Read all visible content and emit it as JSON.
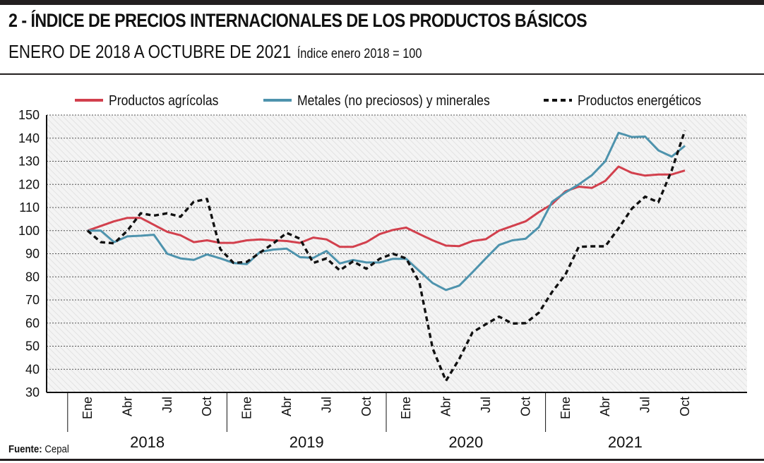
{
  "header": {
    "title": "2 - ÍNDICE DE PRECIOS INTERNACIONALES DE LOS PRODUCTOS BÁSICOS",
    "subtitle": "ENERO DE 2018 A OCTUBRE DE 2021",
    "note": "Índice enero 2018 = 100"
  },
  "footer": {
    "source_label": "Fuente:",
    "source_value": "Cepal"
  },
  "chart_data": {
    "type": "line",
    "x_labels": [
      "Ene",
      "Abr",
      "Jul",
      "Oct",
      "Ene",
      "Abr",
      "Jul",
      "Oct",
      "Ene",
      "Abr",
      "Jul",
      "Oct",
      "Ene",
      "Abr",
      "Jul",
      "Oct"
    ],
    "x_label_months": [
      0,
      3,
      6,
      9,
      12,
      15,
      18,
      21,
      24,
      27,
      30,
      33,
      36,
      39,
      42,
      45
    ],
    "years": [
      {
        "label": "2018",
        "center_month": 4.5
      },
      {
        "label": "2019",
        "center_month": 16.5
      },
      {
        "label": "2020",
        "center_month": 28.5
      },
      {
        "label": "2021",
        "center_month": 40.5
      }
    ],
    "year_separators": [
      -1.5,
      10.5,
      22.5,
      34.5
    ],
    "ylim": [
      30,
      150
    ],
    "yticks": [
      30,
      40,
      50,
      60,
      70,
      80,
      90,
      100,
      110,
      120,
      130,
      140,
      150
    ],
    "legend_position": "top",
    "grid": true,
    "series": [
      {
        "name": "Productos agrícolas",
        "color": "#d2404d",
        "style": "solid",
        "values": [
          100,
          102,
          104,
          105.5,
          105.5,
          102.5,
          99.5,
          98,
          95,
          95.8,
          94.7,
          94.7,
          95.8,
          96.2,
          95.8,
          95.5,
          94.7,
          97,
          96.2,
          93,
          93,
          95,
          98.5,
          100.3,
          101.3,
          98.5,
          95.8,
          93.5,
          93.3,
          95.5,
          96.3,
          100,
          102,
          104,
          108,
          111.5,
          117,
          119,
          118.5,
          121.5,
          127.7,
          125,
          123.8,
          124.3,
          124.3,
          126
        ]
      },
      {
        "name": "Metales (no preciosos) y minerales",
        "color": "#4e93ad",
        "style": "solid",
        "values": [
          100,
          100,
          95,
          97.5,
          97.8,
          98.2,
          90,
          88,
          87.3,
          89.7,
          88,
          86,
          85.5,
          90.8,
          91.8,
          92.2,
          88.5,
          88.2,
          91.2,
          85.8,
          87.3,
          86.2,
          86.2,
          87.8,
          87.8,
          82.5,
          77.3,
          74.3,
          76.2,
          82,
          88,
          93.8,
          95.8,
          96.5,
          101.5,
          112.5,
          116.5,
          120,
          124,
          130,
          142.3,
          140.5,
          140.7,
          134.7,
          132,
          136.7
        ]
      },
      {
        "name": "Productos energéticos",
        "color": "#111111",
        "style": "dashed",
        "values": [
          100,
          95,
          94.5,
          100,
          107.5,
          106.5,
          107.5,
          106,
          112.5,
          113.7,
          92,
          86,
          86.5,
          90.5,
          94.5,
          99,
          96.5,
          86,
          88,
          82.8,
          86.7,
          83.5,
          87.8,
          90,
          88,
          77.5,
          49,
          35,
          44.5,
          56,
          59.5,
          62.8,
          59.8,
          60,
          64.5,
          73.5,
          81,
          93,
          93.2,
          93.2,
          101,
          109.5,
          114.7,
          112.3,
          126,
          143.3
        ]
      }
    ]
  }
}
